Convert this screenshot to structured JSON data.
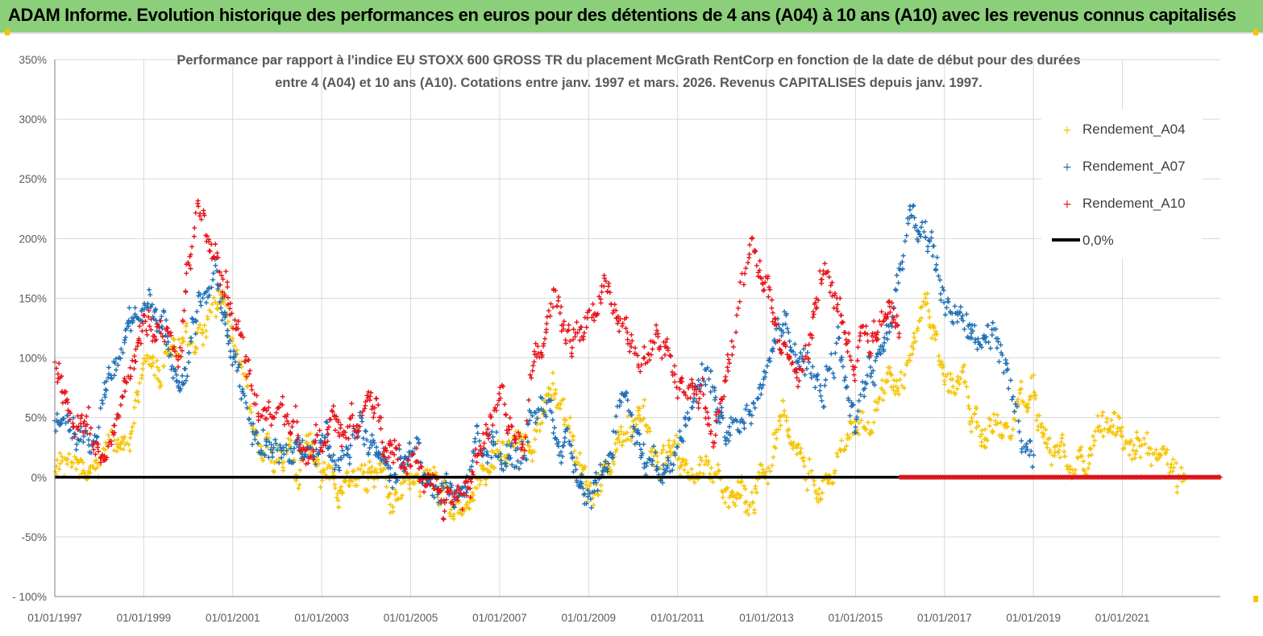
{
  "header": {
    "title": "ADAM Informe. Evolution historique des performances en euros pour des détentions de 4 ans (A04) à 10 ans (A10) avec les revenus connus capitalisés"
  },
  "colors": {
    "banner": "#8ccf7a",
    "a04": "#f5c400",
    "a07": "#1f6fb5",
    "a10": "#e8141a",
    "zero_line": "#000000",
    "grid": "#d9d9d9"
  },
  "chart_data": {
    "type": "scatter",
    "title_line1": "Performance par rapport à l'indice EU STOXX 600 GROSS TR  du placement McGrath RentCorp en fonction de la date de début pour des durées",
    "title_line2": "entre 4 (A04) et 10 ans (A10). Cotations entre janv. 1997 et mars. 2026. Revenus CAPITALISES depuis janv. 1997.",
    "x_unit": "year",
    "x_range": [
      1997.0,
      2023.2
    ],
    "ylim": [
      -100,
      350
    ],
    "y_ticks": [
      350,
      300,
      250,
      200,
      150,
      100,
      50,
      0,
      -50,
      -100
    ],
    "y_tick_labels": [
      "350%",
      "300%",
      "250%",
      "200%",
      "150%",
      "100%",
      "50%",
      "0%",
      "-50%",
      "- 100%"
    ],
    "x_ticks": [
      1997,
      1999,
      2001,
      2003,
      2005,
      2007,
      2009,
      2011,
      2013,
      2015,
      2017,
      2019,
      2021
    ],
    "x_tick_labels": [
      "01/01/1997",
      "01/01/1999",
      "01/01/2001",
      "01/01/2003",
      "01/01/2005",
      "01/01/2007",
      "01/01/2009",
      "01/01/2011",
      "01/01/2013",
      "01/01/2015",
      "01/01/2017",
      "01/01/2019",
      "01/01/2021"
    ],
    "legend": {
      "position": "top-right",
      "items": [
        {
          "label": "Rendement_A04",
          "kind": "marker",
          "color": "#f5c400"
        },
        {
          "label": "Rendement_A07",
          "kind": "marker",
          "color": "#1f6fb5"
        },
        {
          "label": "Rendement_A10",
          "kind": "marker",
          "color": "#e8141a"
        },
        {
          "label": "0,0%",
          "kind": "line",
          "color": "#000000"
        }
      ]
    },
    "series": [
      {
        "name": "Rendement_A04",
        "color": "#f5c400",
        "end": 2022.4,
        "x": [
          1997.0,
          1997.4,
          1997.8,
          1998.2,
          1998.6,
          1999.0,
          1999.4,
          1999.8,
          2000.2,
          2000.6,
          2001.0,
          2001.5,
          2002.0,
          2002.5,
          2003.0,
          2003.5,
          2004.0,
          2004.5,
          2005.0,
          2005.5,
          2006.0,
          2006.5,
          2007.0,
          2007.5,
          2007.8,
          2008.2,
          2008.6,
          2009.0,
          2009.4,
          2009.8,
          2010.2,
          2010.6,
          2011.0,
          2011.4,
          2011.8,
          2012.2,
          2012.6,
          2013.0,
          2013.4,
          2013.8,
          2014.2,
          2014.6,
          2015.0,
          2015.4,
          2015.8,
          2016.2,
          2016.6,
          2017.0,
          2017.4,
          2017.8,
          2018.2,
          2018.6,
          2019.0,
          2019.4,
          2019.8,
          2020.2,
          2020.6,
          2021.0,
          2021.4,
          2021.8,
          2022.1,
          2022.4
        ],
        "y": [
          0,
          8,
          14,
          30,
          20,
          90,
          95,
          105,
          115,
          150,
          100,
          40,
          20,
          15,
          10,
          5,
          2,
          -10,
          5,
          -20,
          -30,
          5,
          10,
          20,
          40,
          80,
          40,
          -5,
          10,
          45,
          55,
          5,
          20,
          10,
          -20,
          -25,
          -30,
          0,
          30,
          20,
          -5,
          10,
          30,
          50,
          80,
          120,
          140,
          70,
          80,
          40,
          38,
          45,
          80,
          30,
          25,
          30,
          38,
          45,
          20,
          30,
          5,
          -15
        ]
      },
      {
        "name": "Rendement_A07",
        "color": "#1f6fb5",
        "end": 2019.0,
        "x": [
          1997.0,
          1997.4,
          1997.8,
          1998.2,
          1998.6,
          1999.0,
          1999.4,
          1999.8,
          2000.2,
          2000.6,
          2001.0,
          2001.5,
          2002.0,
          2002.5,
          2003.0,
          2003.5,
          2004.0,
          2004.5,
          2005.0,
          2005.5,
          2006.0,
          2006.5,
          2007.0,
          2007.5,
          2007.8,
          2008.2,
          2008.6,
          2009.0,
          2009.4,
          2009.8,
          2010.2,
          2010.6,
          2011.0,
          2011.4,
          2011.8,
          2012.2,
          2012.6,
          2013.0,
          2013.4,
          2013.8,
          2014.2,
          2014.6,
          2015.0,
          2015.4,
          2015.8,
          2016.2,
          2016.6,
          2017.0,
          2017.4,
          2017.8,
          2018.2,
          2018.6,
          2019.0
        ],
        "y": [
          55,
          45,
          20,
          90,
          120,
          140,
          110,
          90,
          150,
          170,
          100,
          30,
          25,
          20,
          15,
          20,
          25,
          20,
          30,
          -10,
          -20,
          15,
          30,
          25,
          50,
          60,
          10,
          -20,
          15,
          60,
          30,
          5,
          40,
          80,
          70,
          40,
          70,
          100,
          120,
          90,
          60,
          110,
          50,
          80,
          130,
          220,
          190,
          150,
          140,
          110,
          100,
          50,
          10
        ]
      },
      {
        "name": "Rendement_A10",
        "color": "#e8141a",
        "end": 2016.0,
        "x": [
          1997.0,
          1997.4,
          1997.8,
          1998.2,
          1998.6,
          1999.0,
          1999.4,
          1999.8,
          2000.2,
          2000.6,
          2001.0,
          2001.5,
          2002.0,
          2002.5,
          2003.0,
          2003.5,
          2004.0,
          2004.5,
          2005.0,
          2005.5,
          2006.0,
          2006.5,
          2007.0,
          2007.5,
          2007.8,
          2008.2,
          2008.6,
          2009.0,
          2009.4,
          2009.8,
          2010.2,
          2010.6,
          2011.0,
          2011.4,
          2011.8,
          2012.2,
          2012.6,
          2013.0,
          2013.4,
          2013.8,
          2014.2,
          2014.6,
          2015.0,
          2015.4,
          2015.8,
          2016.0
        ],
        "y": [
          100,
          60,
          40,
          10,
          80,
          140,
          120,
          100,
          240,
          200,
          150,
          60,
          55,
          40,
          35,
          30,
          70,
          30,
          20,
          -15,
          -20,
          25,
          50,
          40,
          100,
          150,
          100,
          140,
          180,
          130,
          80,
          110,
          100,
          80,
          45,
          100,
          190,
          150,
          110,
          100,
          180,
          150,
          100,
          120,
          150,
          120
        ]
      }
    ],
    "zero_line": {
      "label": "0,0%",
      "value": 0
    },
    "zero_markers_a10": {
      "from": 2016.0,
      "to": 2023.2,
      "value": 0
    }
  }
}
